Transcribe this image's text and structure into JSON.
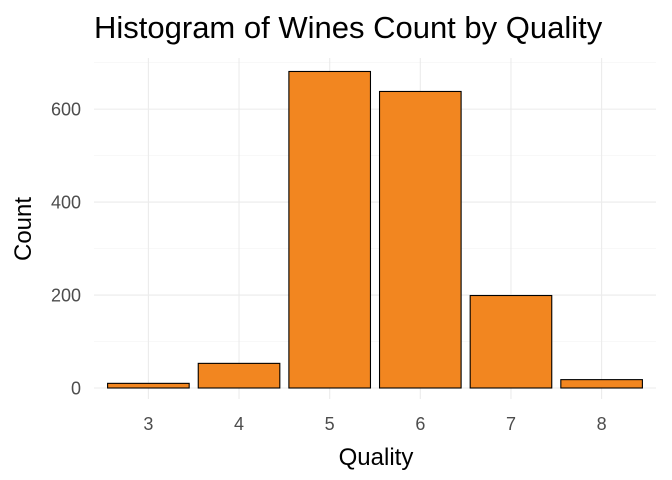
{
  "chart_data": {
    "type": "bar",
    "title": "Histogram of Wines Count by Quality",
    "xlabel": "Quality",
    "ylabel": "Count",
    "categories": [
      "3",
      "4",
      "5",
      "6",
      "7",
      "8"
    ],
    "values": [
      10,
      53,
      681,
      638,
      199,
      18
    ],
    "ylim": [
      0,
      710
    ],
    "yticks": [
      0,
      200,
      400,
      600
    ],
    "grid": true,
    "bar_color": "#f28620",
    "bar_border_color": "#000000",
    "grid_color": "#ebebeb"
  }
}
